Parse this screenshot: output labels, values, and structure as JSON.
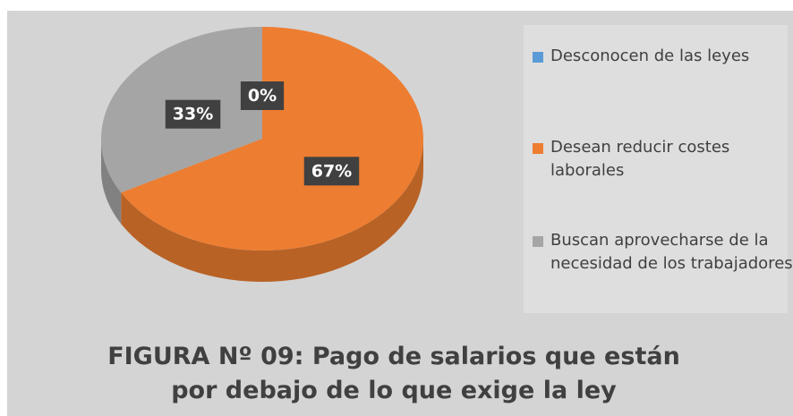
{
  "chart_data": {
    "type": "pie3d",
    "title": "FIGURA Nº 09: Pago de salarios que están por debajo de lo que exige la ley",
    "categories": [
      "Desconocen de las leyes",
      "Desean reducir costes laborales",
      "Buscan aprovecharse de la necesidad de los trabajadores"
    ],
    "values": [
      0,
      67,
      33
    ],
    "value_labels": [
      "0%",
      "67%",
      "33%"
    ],
    "colors": [
      "#5b9bd5",
      "#ed7d31",
      "#a5a5a5"
    ],
    "legend": "right"
  }
}
